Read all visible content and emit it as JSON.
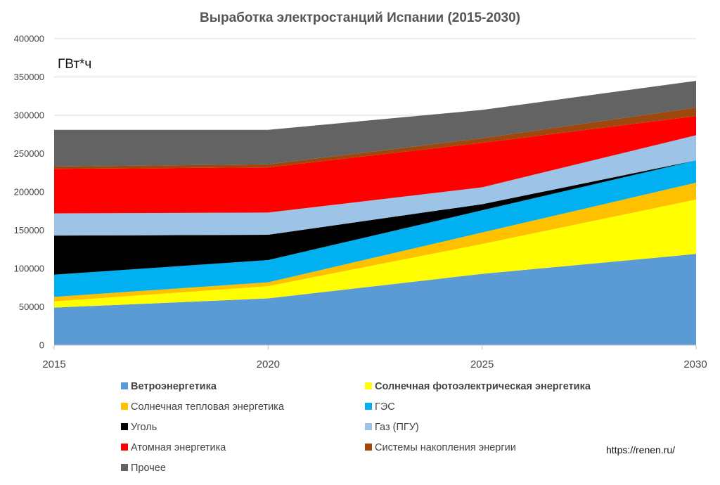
{
  "chart_data": {
    "type": "area",
    "stacked": true,
    "title": "Выработка электростанций Испании (2015-2030)",
    "unit_label": "ГВт*ч",
    "x": [
      "2015",
      "2020",
      "2025",
      "2030"
    ],
    "ylim": [
      0,
      400000
    ],
    "yticks": [
      "0",
      "50000",
      "100000",
      "150000",
      "200000",
      "250000",
      "300000",
      "350000",
      "400000"
    ],
    "grid": true,
    "legend_position": "bottom",
    "series": [
      {
        "name": "Ветроэнергетика",
        "color": "#5b9bd5",
        "bold": true,
        "values": [
          49000,
          61000,
          93000,
          119000
        ]
      },
      {
        "name": "Солнечная фотоэлектрическая энергетика",
        "color": "#ffff00",
        "bold": true,
        "values": [
          8000,
          16000,
          39000,
          71000
        ]
      },
      {
        "name": "Солнечная тепловая энергетика",
        "color": "#ffc000",
        "bold": false,
        "values": [
          6000,
          5000,
          15000,
          22000
        ]
      },
      {
        "name": "ГЭС",
        "color": "#00b0f0",
        "bold": false,
        "values": [
          29000,
          29000,
          29000,
          29000
        ]
      },
      {
        "name": "Уголь",
        "color": "#000000",
        "bold": false,
        "values": [
          51000,
          33000,
          8000,
          0
        ]
      },
      {
        "name": "Газ (ПГУ)",
        "color": "#9dc3e6",
        "bold": false,
        "values": [
          29000,
          29000,
          22000,
          33000
        ]
      },
      {
        "name": "Атомная энергетика",
        "color": "#ff0000",
        "bold": false,
        "values": [
          58000,
          59000,
          58000,
          25000
        ]
      },
      {
        "name": "Системы накопления энергии",
        "color": "#9e480e",
        "bold": false,
        "values": [
          3000,
          4000,
          6000,
          11000
        ]
      },
      {
        "name": "Прочее",
        "color": "#636363",
        "bold": false,
        "values": [
          48000,
          45000,
          37000,
          35000
        ]
      }
    ]
  },
  "source_text": "https://renen.ru/"
}
